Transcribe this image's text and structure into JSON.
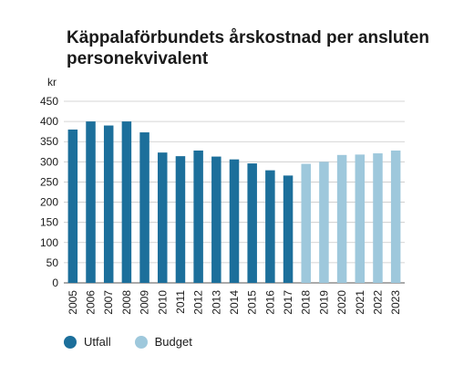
{
  "chart_data": {
    "type": "bar",
    "title": "Käppalaförbundets årskostnad per ansluten personekvivalent",
    "ylabel": "kr",
    "xlabel": "",
    "ylim": [
      0,
      450
    ],
    "yticks": [
      0,
      50,
      100,
      150,
      200,
      250,
      300,
      350,
      400,
      450
    ],
    "grid": true,
    "legend_placement": "bottom-left",
    "categories": [
      "2005",
      "2006",
      "2007",
      "2008",
      "2009",
      "2010",
      "2011",
      "2012",
      "2013",
      "2014",
      "2015",
      "2016",
      "2017",
      "2018",
      "2019",
      "2020",
      "2021",
      "2022",
      "2023"
    ],
    "series": [
      {
        "name": "Utfall",
        "color": "#1c6f9b",
        "values": [
          380,
          400,
          390,
          400,
          373,
          323,
          314,
          328,
          313,
          306,
          296,
          279,
          266,
          null,
          null,
          null,
          null,
          null,
          null
        ]
      },
      {
        "name": "Budget",
        "color": "#9ec8dc",
        "values": [
          null,
          null,
          null,
          null,
          null,
          null,
          null,
          null,
          null,
          null,
          null,
          null,
          null,
          295,
          300,
          317,
          318,
          321,
          328
        ]
      }
    ]
  }
}
